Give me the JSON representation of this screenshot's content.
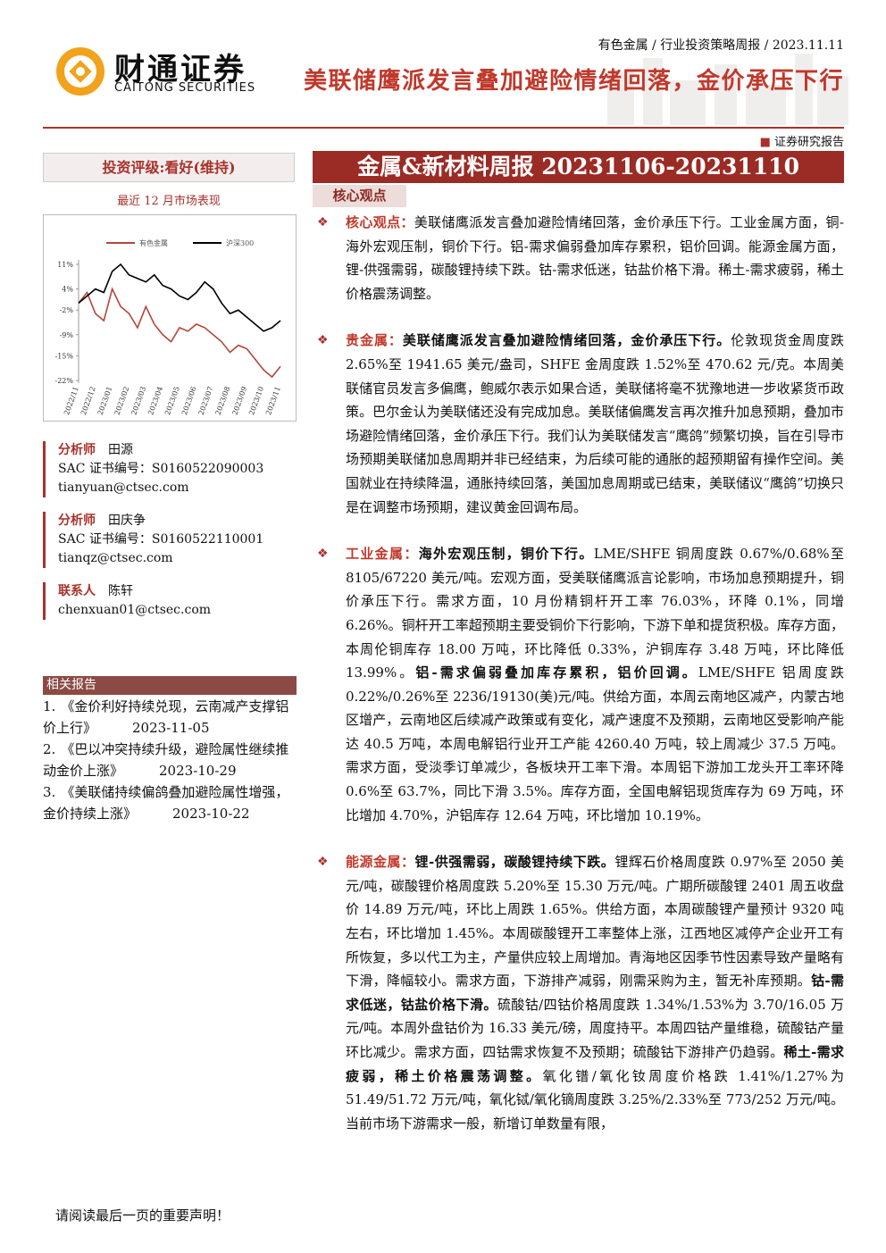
{
  "header": {
    "logo_cn": "财通证券",
    "logo_en": "CAITONG SECURITIES",
    "breadcrumb": "有色金属 / 行业投资策略周报 / 2023.11.11",
    "title": "美联储鹰派发言叠加避险情绪回落，金价承压下行",
    "report_type": "证券研究报告"
  },
  "sidebar": {
    "rating": "投资评级:看好(维持)",
    "market_chart": {
      "type": "line",
      "title": "最近 12 月市场表现",
      "categories": [
        "2022/11",
        null,
        "2022/12",
        null,
        "2023/01",
        null,
        "2023/02",
        null,
        "2023/03",
        null,
        "2023/04",
        null,
        "2023/05",
        null,
        "2023/06",
        null,
        "2023/07",
        null,
        "2023/08",
        null,
        "2023/09",
        null,
        "2023/10",
        null,
        "2023/11"
      ],
      "series": [
        {
          "name": "有色金属",
          "color": "#b5453a",
          "values": [
            0,
            3,
            -3,
            -5,
            4,
            -1,
            -3,
            -7,
            -1,
            -6,
            -9,
            -11,
            -7,
            -8,
            -6,
            -7,
            -9,
            -11,
            -14,
            -12,
            -13,
            -16,
            -19,
            -21,
            -18
          ]
        },
        {
          "name": "沪深300",
          "color": "#000000",
          "values": [
            0,
            2,
            4,
            3,
            9,
            11,
            8,
            7,
            6,
            8,
            5,
            4,
            2,
            1,
            3,
            6,
            4,
            0,
            -3,
            -2,
            -4,
            -6,
            -8,
            -7,
            -5
          ]
        }
      ],
      "ylim": [
        -22,
        11
      ],
      "yticks": [
        {
          "value": 11,
          "label": "11%"
        },
        {
          "value": 4,
          "label": "4%"
        },
        {
          "value": -2,
          "label": "-2%"
        },
        {
          "value": -9,
          "label": "-9%"
        },
        {
          "value": -15,
          "label": "-15%"
        },
        {
          "value": -22,
          "label": "-22%"
        }
      ]
    },
    "analysts": [
      {
        "role": "分析师",
        "name": "田源",
        "sac": "SAC 证书编号：S0160522090003",
        "email": "tianyuan@ctsec.com"
      },
      {
        "role": "分析师",
        "name": "田庆争",
        "sac": "SAC 证书编号：S0160522110001",
        "email": "tianqz@ctsec.com"
      }
    ],
    "contact": {
      "role": "联系人",
      "name": "陈轩",
      "email": "chenxuan01@ctsec.com"
    },
    "related": {
      "heading": "相关报告",
      "items": [
        {
          "number": "1.",
          "title": "《金价利好持续兑现，云南减产支撑铝价上行》",
          "date": "2023-11-05"
        },
        {
          "number": "2.",
          "title": "《巴以冲突持续升级，避险属性继续推动金价上涨》",
          "date": "2023-10-29"
        },
        {
          "number": "3.",
          "title": "《美联储持续偏鸽叠加避险属性增强，金价持续上涨》",
          "date": "2023-10-22"
        }
      ]
    }
  },
  "main": {
    "banner": "金属&新材料周报 20231106-20231110",
    "tab": "核心观点",
    "paragraphs": [
      {
        "label": "核心观点：",
        "segments": [
          {
            "text": "美联储鹰派发言叠加避险情绪回落，金价承压下行。工业金属方面，铜-海外宏观压制，铜价下行。铝-需求偏弱叠加库存累积，铝价回调。能源金属方面，锂-供强需弱，碳酸锂持续下跌。钴-需求低迷，钴盐价格下滑。稀土-需求疲弱，稀土价格震荡调整。",
            "bold": false
          }
        ]
      },
      {
        "label": "贵金属：",
        "segments": [
          {
            "text": "美联储鹰派发言叠加避险情绪回落，金价承压下行。",
            "bold": true
          },
          {
            "text": "伦敦现货金周度跌 2.65%至 1941.65 美元/盎司，SHFE 金周度跌 1.52%至 470.62 元/克。本周美联储官员发言多偏鹰，鲍威尔表示如果合适，美联储将毫不犹豫地进一步收紧货币政策。巴尔金认为美联储还没有完成加息。美联储偏鹰发言再次推升加息预期，叠加市场避险情绪回落，金价承压下行。我们认为美联储发言“鹰鸽”频繁切换，旨在引导市场预期美联储加息周期并非已经结束，为后续可能的通胀的超预期留有操作空间。美国就业在持续降温，通胀持续回落，美国加息周期或已结束，美联储议“鹰鸽”切换只是在调整市场预期，建议黄金回调布局。",
            "bold": false
          }
        ]
      },
      {
        "label": "工业金属：",
        "segments": [
          {
            "text": "海外宏观压制，铜价下行。",
            "bold": true
          },
          {
            "text": "LME/SHFE 铜周度跌 0.67%/0.68%至 8105/67220 美元/吨。宏观方面，受美联储鹰派言论影响，市场加息预期提升，铜价承压下行。需求方面，10 月份精铜杆开工率 76.03%，环降 0.1%，同增 6.26%。铜杆开工率超预期主要受铜价下行影响，下游下单和提货积极。库存方面，本周伦铜库存 18.00 万吨，环比降低 0.33%，沪铜库存 3.48 万吨，环比降低 13.99%。",
            "bold": false
          },
          {
            "text": "铝-需求偏弱叠加库存累积，铝价回调。",
            "bold": true
          },
          {
            "text": "LME/SHFE 铝周度跌 0.22%/0.26%至 2236/19130(美)元/吨。供给方面，本周云南地区减产，内蒙古地区增产，云南地区后续减产政策或有变化，减产速度不及预期，云南地区受影响产能达 40.5 万吨，本周电解铝行业开工产能 4260.40 万吨，较上周减少 37.5 万吨。需求方面，受淡季订单减少，各板块开工率下滑。本周铝下游加工龙头开工率环降 0.6%至 63.7%，同比下滑 3.5%。库存方面，全国电解铝现货库存为 69 万吨，环比增加 4.70%，沪铝库存 12.64 万吨，环比增加 10.19%。",
            "bold": false
          }
        ]
      },
      {
        "label": "能源金属：",
        "segments": [
          {
            "text": "锂-供强需弱，碳酸锂持续下跌。",
            "bold": true
          },
          {
            "text": "锂辉石价格周度跌 0.97%至 2050 美元/吨，碳酸锂价格周度跌 5.20%至 15.30 万元/吨。广期所碳酸锂 2401 周五收盘价 14.89 万元/吨，环比上周跌 1.65%。供给方面，本周碳酸锂产量预计 9320 吨左右，环比增加 1.45%。本周碳酸锂开工率整体上涨，江西地区减停产企业开工有所恢复，多以代工为主，产量供应较上周增加。青海地区因季节性因素导致产量略有下滑，降幅较小。需求方面，下游排产减弱，刚需采购为主，暂无补库预期。",
            "bold": false
          },
          {
            "text": "钴-需求低迷，钴盐价格下滑。",
            "bold": true
          },
          {
            "text": "硫酸钴/四钴价格周度跌 1.34%/1.53%为 3.70/16.05 万元/吨。本周外盘钴价为 16.33 美元/磅，周度持平。本周四钴产量维稳，硫酸钴产量环比减少。需求方面，四钴需求恢复不及预期；硫酸钴下游排产仍趋弱。",
            "bold": false
          },
          {
            "text": "稀土-需求疲弱，稀土价格震荡调整。",
            "bold": true
          },
          {
            "text": "氧化镨/氧化钕周度价格跌 1.41%/1.27%为 51.49/51.72 万元/吨，氧化铽/氧化镝周度跌 3.25%/2.33%至 773/252 万元/吨。当前市场下游需求一般，新增订单数量有限，",
            "bold": false
          }
        ]
      }
    ]
  },
  "footer": "请阅读最后一页的重要声明！"
}
